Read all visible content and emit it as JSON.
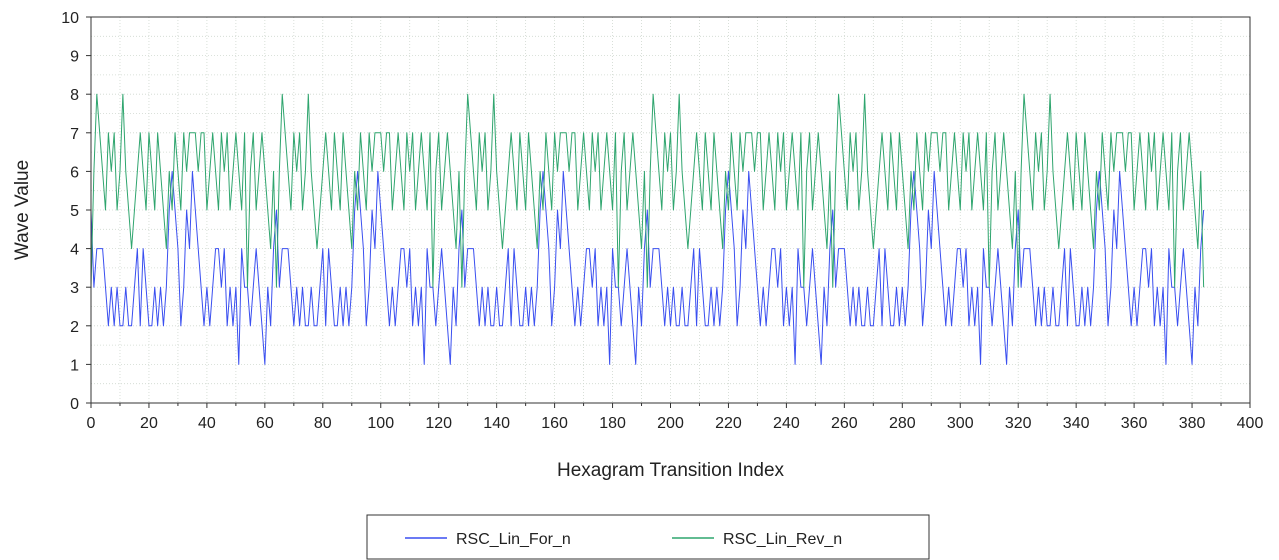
{
  "chart_data": {
    "type": "line",
    "title": "",
    "xlabel": "Hexagram Transition Index",
    "ylabel": "Wave Value",
    "xlim": [
      0,
      400
    ],
    "ylim": [
      0,
      10
    ],
    "x_ticks": [
      0,
      20,
      40,
      60,
      80,
      100,
      120,
      140,
      160,
      180,
      200,
      220,
      240,
      260,
      280,
      300,
      320,
      340,
      360,
      380,
      400
    ],
    "y_ticks": [
      0,
      1,
      2,
      3,
      4,
      5,
      6,
      7,
      8,
      9,
      10
    ],
    "grid": true,
    "legend_position": "bottom-center",
    "period": 64,
    "series": [
      {
        "name": "RSC_Lin_For_n",
        "color": "#3a4ff0",
        "x": [
          0,
          1,
          2,
          3,
          4,
          5,
          6,
          7,
          8,
          9,
          10,
          11,
          12,
          13,
          14,
          15,
          16,
          17,
          18,
          19,
          20,
          21,
          22,
          23,
          24,
          25,
          26,
          27,
          28,
          29,
          30,
          31,
          32,
          33,
          34,
          35,
          36,
          37,
          38,
          39,
          40,
          41,
          42,
          43,
          44,
          45,
          46,
          47,
          48,
          49,
          50,
          51,
          52,
          53,
          54,
          55,
          56,
          57,
          58,
          59,
          60,
          61,
          62,
          63
        ],
        "values": [
          5,
          3,
          4,
          4,
          4,
          3,
          2,
          3,
          2,
          3,
          2,
          2,
          3,
          2,
          2,
          3,
          4,
          2,
          4,
          3,
          2,
          2,
          3,
          2,
          3,
          2,
          3,
          5,
          6,
          5,
          4,
          2,
          3,
          5,
          4,
          6,
          5,
          4,
          3,
          2,
          3,
          2,
          3,
          4,
          4,
          3,
          4,
          2,
          3,
          2,
          3,
          1,
          4,
          3,
          3,
          2,
          3,
          4,
          3,
          2,
          1,
          3,
          2,
          4
        ]
      },
      {
        "name": "RSC_Lin_Rev_n",
        "color": "#2fa56e",
        "x": [
          0,
          1,
          2,
          3,
          4,
          5,
          6,
          7,
          8,
          9,
          10,
          11,
          12,
          13,
          14,
          15,
          16,
          17,
          18,
          19,
          20,
          21,
          22,
          23,
          24,
          25,
          26,
          27,
          28,
          29,
          30,
          31,
          32,
          33,
          34,
          35,
          36,
          37,
          38,
          39,
          40,
          41,
          42,
          43,
          44,
          45,
          46,
          47,
          48,
          49,
          50,
          51,
          52,
          53,
          54,
          55,
          56,
          57,
          58,
          59,
          60,
          61,
          62,
          63
        ],
        "values": [
          3,
          6,
          8,
          7,
          6,
          5,
          7,
          6,
          7,
          5,
          6,
          8,
          6,
          5,
          4,
          5,
          6,
          7,
          6,
          5,
          7,
          6,
          5,
          7,
          6,
          5,
          4,
          6,
          5,
          7,
          6,
          5,
          7,
          6,
          7,
          7,
          7,
          6,
          7,
          7,
          5,
          6,
          7,
          6,
          5,
          7,
          6,
          7,
          5,
          6,
          7,
          6,
          5,
          7,
          3,
          6,
          7,
          5,
          6,
          7,
          6,
          5,
          4,
          6
        ]
      }
    ]
  }
}
